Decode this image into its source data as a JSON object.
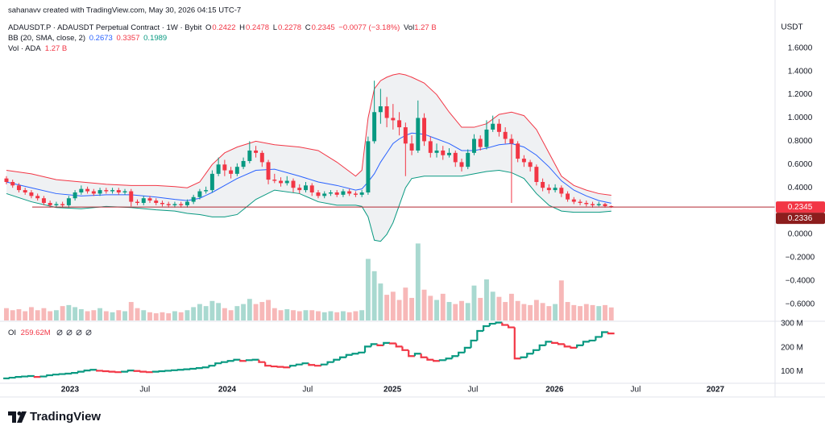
{
  "header": {
    "credit": "sahanavv created with TradingView.com, May 30, 2026 04:15 UTC-7",
    "symbol": "ADAUSDT.P · ADAUSDT Perpetual Contract · 1W · Bybit",
    "o": "O",
    "h": "H",
    "l": "L",
    "c": "C",
    "change": "−0.0077 (−3.18%)",
    "vol": "Vol",
    "vol_pane": "Vol · ADA",
    "oi": "OI",
    "currency": "USDT"
  },
  "footer": {
    "brand": "TradingView"
  },
  "chart_data": {
    "type": "candlestick",
    "colors": {
      "up": "#089981",
      "down": "#f23645",
      "volume_up": "#a9d9d0",
      "volume_down": "#f7b8b8",
      "last_price": "#f23645",
      "mark_price": "#8c1d1d"
    },
    "xlim": [
      -1.03,
      123.26
    ],
    "xticks": [
      {
        "value": 10.2,
        "label": "2023"
      },
      {
        "value": 22.2,
        "label": "Jul"
      },
      {
        "value": 35.4,
        "label": "2024"
      },
      {
        "value": 48.3,
        "label": "Jul"
      },
      {
        "value": 61.9,
        "label": "2025"
      },
      {
        "value": 74.8,
        "label": "Jul"
      },
      {
        "value": 87.9,
        "label": "2026"
      },
      {
        "value": 100.9,
        "label": "Jul"
      },
      {
        "value": 113.7,
        "label": "2027"
      }
    ],
    "ylim": [
      -0.74,
      1.875
    ],
    "yticks": [
      {
        "value": 1.6,
        "label": "1.6000"
      },
      {
        "value": 1.4,
        "label": "1.4000"
      },
      {
        "value": 1.2,
        "label": "1.2000"
      },
      {
        "value": 1.0,
        "label": "1.0000"
      },
      {
        "value": 0.8,
        "label": "0.8000"
      },
      {
        "value": 0.6,
        "label": "0.6000"
      },
      {
        "value": 0.4,
        "label": "0.4000"
      },
      {
        "value": 0,
        "label": "0.0000"
      },
      {
        "value": -0.2,
        "label": "−0.2000"
      },
      {
        "value": -0.4,
        "label": "−0.4000"
      },
      {
        "value": -0.6,
        "label": "−0.6000"
      }
    ],
    "mark_price": 0.2336,
    "ohlc": [
      [
        0.48,
        0.5,
        0.43,
        0.45
      ],
      [
        0.45,
        0.47,
        0.4,
        0.42
      ],
      [
        0.42,
        0.44,
        0.36,
        0.38
      ],
      [
        0.38,
        0.4,
        0.34,
        0.36
      ],
      [
        0.36,
        0.38,
        0.31,
        0.33
      ],
      [
        0.33,
        0.35,
        0.29,
        0.31
      ],
      [
        0.31,
        0.33,
        0.25,
        0.27
      ],
      [
        0.27,
        0.29,
        0.23,
        0.25
      ],
      [
        0.25,
        0.28,
        0.23,
        0.26
      ],
      [
        0.26,
        0.28,
        0.23,
        0.25
      ],
      [
        0.25,
        0.33,
        0.23,
        0.31
      ],
      [
        0.31,
        0.38,
        0.29,
        0.36
      ],
      [
        0.36,
        0.42,
        0.34,
        0.39
      ],
      [
        0.39,
        0.41,
        0.35,
        0.37
      ],
      [
        0.37,
        0.39,
        0.33,
        0.35
      ],
      [
        0.35,
        0.4,
        0.33,
        0.38
      ],
      [
        0.38,
        0.4,
        0.35,
        0.37
      ],
      [
        0.37,
        0.4,
        0.35,
        0.38
      ],
      [
        0.38,
        0.4,
        0.34,
        0.36
      ],
      [
        0.36,
        0.39,
        0.34,
        0.37
      ],
      [
        0.37,
        0.39,
        0.24,
        0.28
      ],
      [
        0.28,
        0.3,
        0.25,
        0.27
      ],
      [
        0.27,
        0.33,
        0.25,
        0.31
      ],
      [
        0.31,
        0.33,
        0.27,
        0.29
      ],
      [
        0.29,
        0.31,
        0.25,
        0.27
      ],
      [
        0.27,
        0.29,
        0.24,
        0.26
      ],
      [
        0.26,
        0.28,
        0.23,
        0.25
      ],
      [
        0.25,
        0.28,
        0.23,
        0.26
      ],
      [
        0.26,
        0.28,
        0.23,
        0.25
      ],
      [
        0.25,
        0.3,
        0.23,
        0.28
      ],
      [
        0.28,
        0.34,
        0.26,
        0.32
      ],
      [
        0.32,
        0.39,
        0.3,
        0.37
      ],
      [
        0.37,
        0.41,
        0.35,
        0.38
      ],
      [
        0.38,
        0.55,
        0.36,
        0.52
      ],
      [
        0.52,
        0.66,
        0.5,
        0.6
      ],
      [
        0.6,
        0.64,
        0.5,
        0.55
      ],
      [
        0.55,
        0.58,
        0.48,
        0.52
      ],
      [
        0.52,
        0.61,
        0.5,
        0.58
      ],
      [
        0.58,
        0.66,
        0.56,
        0.63
      ],
      [
        0.63,
        0.8,
        0.61,
        0.72
      ],
      [
        0.72,
        0.76,
        0.66,
        0.7
      ],
      [
        0.7,
        0.72,
        0.58,
        0.62
      ],
      [
        0.62,
        0.64,
        0.43,
        0.47
      ],
      [
        0.47,
        0.52,
        0.44,
        0.46
      ],
      [
        0.46,
        0.49,
        0.41,
        0.44
      ],
      [
        0.44,
        0.5,
        0.42,
        0.46
      ],
      [
        0.46,
        0.48,
        0.36,
        0.4
      ],
      [
        0.4,
        0.43,
        0.35,
        0.38
      ],
      [
        0.38,
        0.45,
        0.36,
        0.42
      ],
      [
        0.42,
        0.44,
        0.33,
        0.36
      ],
      [
        0.36,
        0.38,
        0.31,
        0.33
      ],
      [
        0.33,
        0.37,
        0.31,
        0.35
      ],
      [
        0.35,
        0.38,
        0.33,
        0.36
      ],
      [
        0.36,
        0.38,
        0.32,
        0.34
      ],
      [
        0.34,
        0.39,
        0.32,
        0.37
      ],
      [
        0.37,
        0.39,
        0.33,
        0.35
      ],
      [
        0.35,
        0.37,
        0.32,
        0.34
      ],
      [
        0.34,
        0.38,
        0.32,
        0.36
      ],
      [
        0.36,
        0.84,
        0.34,
        0.8
      ],
      [
        0.8,
        1.32,
        0.78,
        1.05
      ],
      [
        1.05,
        1.25,
        0.95,
        1.1
      ],
      [
        1.1,
        1.18,
        0.92,
        1.0
      ],
      [
        1.0,
        1.12,
        0.9,
        0.98
      ],
      [
        0.98,
        1.05,
        0.85,
        0.92
      ],
      [
        0.92,
        0.96,
        0.5,
        0.78
      ],
      [
        0.78,
        0.85,
        0.68,
        0.72
      ],
      [
        0.72,
        1.15,
        0.7,
        1.0
      ],
      [
        1.0,
        1.04,
        0.76,
        0.8
      ],
      [
        0.8,
        0.84,
        0.66,
        0.7
      ],
      [
        0.7,
        0.78,
        0.66,
        0.72
      ],
      [
        0.72,
        0.76,
        0.64,
        0.68
      ],
      [
        0.68,
        0.74,
        0.66,
        0.7
      ],
      [
        0.7,
        0.72,
        0.58,
        0.62
      ],
      [
        0.62,
        0.65,
        0.54,
        0.58
      ],
      [
        0.58,
        0.73,
        0.56,
        0.7
      ],
      [
        0.7,
        0.86,
        0.68,
        0.82
      ],
      [
        0.82,
        0.85,
        0.72,
        0.75
      ],
      [
        0.75,
        0.98,
        0.73,
        0.9
      ],
      [
        0.9,
        1.02,
        0.88,
        0.95
      ],
      [
        0.95,
        0.99,
        0.84,
        0.88
      ],
      [
        0.88,
        0.92,
        0.78,
        0.82
      ],
      [
        0.82,
        0.86,
        0.27,
        0.78
      ],
      [
        0.78,
        0.8,
        0.62,
        0.65
      ],
      [
        0.65,
        0.68,
        0.58,
        0.62
      ],
      [
        0.62,
        0.64,
        0.54,
        0.58
      ],
      [
        0.58,
        0.6,
        0.42,
        0.45
      ],
      [
        0.45,
        0.48,
        0.37,
        0.4
      ],
      [
        0.4,
        0.43,
        0.35,
        0.38
      ],
      [
        0.38,
        0.43,
        0.36,
        0.4
      ],
      [
        0.4,
        0.42,
        0.32,
        0.35
      ],
      [
        0.35,
        0.37,
        0.28,
        0.3
      ],
      [
        0.3,
        0.32,
        0.26,
        0.28
      ],
      [
        0.28,
        0.3,
        0.25,
        0.27
      ],
      [
        0.27,
        0.29,
        0.24,
        0.26
      ],
      [
        0.26,
        0.28,
        0.23,
        0.25
      ],
      [
        0.25,
        0.28,
        0.24,
        0.26
      ],
      [
        0.26,
        0.27,
        0.23,
        0.2422
      ],
      [
        0.2422,
        0.2478,
        0.2278,
        0.2345
      ]
    ],
    "bb": {
      "label": "BB (20, SMA, close, 2)",
      "fill": "#e9ecef",
      "x": [
        0,
        4,
        8,
        12,
        16,
        20,
        24,
        27,
        29,
        31,
        33,
        35,
        37,
        40,
        43,
        47,
        50,
        53,
        56,
        57,
        58,
        59,
        60,
        61,
        62,
        63,
        64,
        65,
        67,
        69,
        71,
        73,
        75,
        77,
        79,
        81,
        83,
        85,
        87,
        89,
        91,
        93,
        95,
        97
      ],
      "middle": {
        "color": "#2962ff",
        "values": [
          0.45,
          0.4,
          0.35,
          0.33,
          0.34,
          0.34,
          0.32,
          0.3,
          0.29,
          0.31,
          0.36,
          0.42,
          0.48,
          0.55,
          0.56,
          0.5,
          0.45,
          0.42,
          0.38,
          0.39,
          0.45,
          0.52,
          0.62,
          0.7,
          0.78,
          0.82,
          0.85,
          0.87,
          0.86,
          0.82,
          0.78,
          0.72,
          0.72,
          0.74,
          0.77,
          0.78,
          0.75,
          0.68,
          0.58,
          0.46,
          0.38,
          0.33,
          0.29,
          0.2673
        ]
      },
      "upper": {
        "color": "#f23645",
        "values": [
          0.55,
          0.52,
          0.47,
          0.45,
          0.43,
          0.42,
          0.42,
          0.41,
          0.4,
          0.45,
          0.6,
          0.7,
          0.75,
          0.8,
          0.77,
          0.75,
          0.72,
          0.62,
          0.5,
          0.55,
          1.0,
          1.25,
          1.32,
          1.35,
          1.37,
          1.38,
          1.37,
          1.35,
          1.3,
          1.2,
          1.05,
          0.92,
          0.92,
          0.95,
          1.03,
          1.05,
          1.02,
          0.9,
          0.7,
          0.5,
          0.42,
          0.38,
          0.35,
          0.3357
        ]
      },
      "lower": {
        "color": "#089981",
        "values": [
          0.35,
          0.28,
          0.23,
          0.22,
          0.24,
          0.23,
          0.21,
          0.2,
          0.18,
          0.17,
          0.15,
          0.15,
          0.17,
          0.3,
          0.38,
          0.35,
          0.28,
          0.25,
          0.25,
          0.24,
          0.15,
          -0.05,
          -0.06,
          0.0,
          0.1,
          0.25,
          0.4,
          0.48,
          0.5,
          0.5,
          0.5,
          0.5,
          0.52,
          0.54,
          0.55,
          0.53,
          0.48,
          0.35,
          0.25,
          0.2,
          0.19,
          0.19,
          0.19,
          0.1989
        ]
      }
    },
    "volume": {
      "ylim": [
        0,
        8
      ],
      "label": "1.27 B",
      "values": [
        1.2,
        1.0,
        1.1,
        0.9,
        1.3,
        1.0,
        1.2,
        0.9,
        1.0,
        1.4,
        1.5,
        1.3,
        1.1,
        0.9,
        1.0,
        1.2,
        0.9,
        0.8,
        1.0,
        0.9,
        1.8,
        1.2,
        1.0,
        0.8,
        0.7,
        0.8,
        0.7,
        0.9,
        0.8,
        1.0,
        1.3,
        1.6,
        1.4,
        1.9,
        1.7,
        1.2,
        1.0,
        1.4,
        1.6,
        2.1,
        1.6,
        1.8,
        2.0,
        1.2,
        1.0,
        1.1,
        1.0,
        0.9,
        1.0,
        1.0,
        0.9,
        0.8,
        0.9,
        0.8,
        0.9,
        0.8,
        0.9,
        1.0,
        6.0,
        4.8,
        3.6,
        2.5,
        2.8,
        2.0,
        3.2,
        2.2,
        7.5,
        3.0,
        2.4,
        2.0,
        2.6,
        1.8,
        1.6,
        1.9,
        1.7,
        3.4,
        2.2,
        4.0,
        2.8,
        2.3,
        1.8,
        2.6,
        1.9,
        1.6,
        1.5,
        2.0,
        1.7,
        1.4,
        1.6,
        3.9,
        1.8,
        1.5,
        1.4,
        1.6,
        1.5,
        1.4,
        1.5,
        1.27
      ]
    },
    "oi": {
      "ylim": [
        55,
        307
      ],
      "yticks": [
        {
          "value": 300,
          "label": "300 M"
        },
        {
          "value": 200,
          "label": "200 M"
        },
        {
          "value": 100,
          "label": "100 M"
        }
      ],
      "value_label": "259.62M",
      "values": [
        72,
        75,
        78,
        80,
        82,
        78,
        80,
        85,
        88,
        90,
        92,
        95,
        100,
        105,
        108,
        104,
        102,
        100,
        98,
        100,
        105,
        103,
        100,
        98,
        100,
        102,
        104,
        106,
        108,
        110,
        112,
        115,
        118,
        125,
        135,
        140,
        145,
        150,
        145,
        148,
        150,
        140,
        125,
        122,
        120,
        118,
        125,
        130,
        135,
        128,
        125,
        130,
        140,
        150,
        160,
        170,
        175,
        180,
        205,
        215,
        210,
        220,
        218,
        205,
        190,
        165,
        175,
        160,
        150,
        145,
        148,
        155,
        165,
        180,
        200,
        230,
        270,
        290,
        300,
        305,
        295,
        285,
        155,
        160,
        175,
        190,
        210,
        225,
        220,
        215,
        205,
        200,
        210,
        225,
        230,
        245,
        265,
        259.62
      ]
    }
  }
}
